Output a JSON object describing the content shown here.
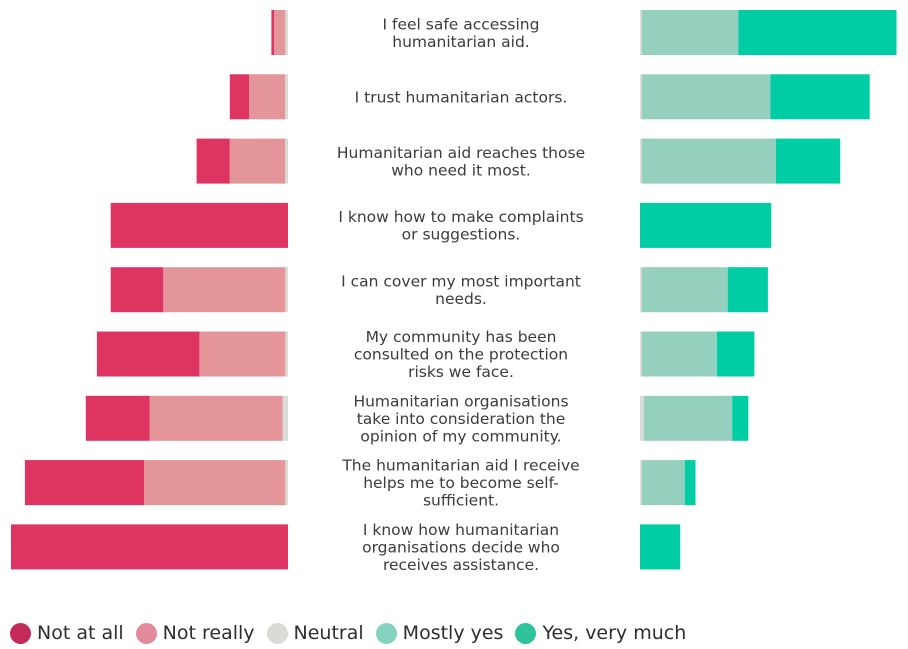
{
  "chart_data": {
    "type": "bar",
    "orientation": "diverging-horizontal",
    "stacked": true,
    "categories": [
      [
        "I feel safe accessing",
        "humanitarian aid."
      ],
      [
        "I trust humanitarian actors."
      ],
      [
        "Humanitarian aid reaches those",
        "who need it most."
      ],
      [
        "I know how to make complaints",
        "or suggestions."
      ],
      [
        "I can cover my most important",
        "needs."
      ],
      [
        "My community has been",
        "consulted on the protection",
        "risks we face."
      ],
      [
        "Humanitarian organisations",
        "take into consideration the",
        "opinion of my community."
      ],
      [
        "The humanitarian aid I receive",
        "helps me to become self-",
        "sufficient."
      ],
      [
        "I know how humanitarian",
        "organisations decide who",
        "receives assistance."
      ]
    ],
    "series": [
      {
        "name": "Not at all",
        "color": "#de3462",
        "values": [
          1,
          7,
          12,
          64,
          19,
          37,
          23,
          43,
          100
        ]
      },
      {
        "name": "Not really",
        "color": "#e39599",
        "values": [
          4,
          13,
          20,
          0,
          44,
          31,
          48,
          51,
          0
        ]
      },
      {
        "name": "Neutral",
        "color": "#d9dbd6",
        "values": [
          1,
          1,
          1,
          0,
          1,
          1,
          2,
          1,
          0
        ]
      },
      {
        "name": "Mostly yes",
        "color": "#95cfbd",
        "values": [
          36,
          48,
          50,
          0,
          32,
          28,
          33,
          16,
          0
        ]
      },
      {
        "name": "Yes, very much",
        "color": "#00cda4",
        "values": [
          59,
          37,
          24,
          49,
          15,
          14,
          6,
          4,
          15
        ]
      }
    ],
    "legend": "bottom-left",
    "grid": false
  }
}
